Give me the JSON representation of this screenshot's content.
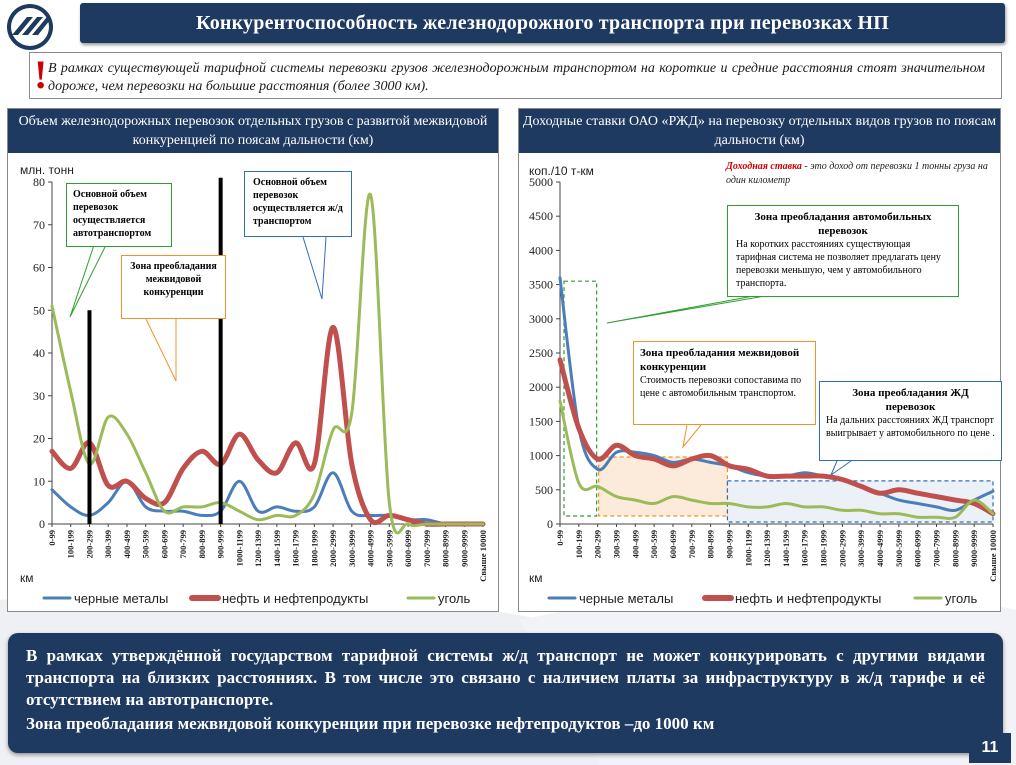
{
  "slide": {
    "title": "Конкурентоспособность железнодорожного транспорта при перевозках НП",
    "page_number": "11"
  },
  "intro": {
    "mark": "!",
    "text": "В рамках существующей тарифной системы перевозки грузов железнодорожным транспортом на короткие и средние расстояния стоят значительном дороже, чем перевозки на большие расстояния (более 3000 км)."
  },
  "left_panel": {
    "header": "Объем железнодорожных перевозок отдельных грузов с развитой межвидовой конкуренцией по поясам дальности (км)",
    "callouts": {
      "auto": "Основной объем перевозок осуществляется автотранспортом",
      "inter": "Зона преобладания межвидовой конкуренции",
      "rail": "Основной объем перевозок осуществляется ж/д транспортом"
    }
  },
  "right_panel": {
    "header": "Доходные ставки ОАО «РЖД» на перевозку отдельных видов грузов по поясам дальности (км)",
    "definition_highlight": "Доходная ставка",
    "definition_rest": " - это доход от перевозки 1 тонны груза на один километр",
    "callouts": {
      "auto_title": "Зона преобладания автомобильных перевозок",
      "auto_body": "На коротких расстояниях существующая тарифная система не позволяет предлагать цену перевозки меньшую, чем у автомобильного транспорта.",
      "inter_title": "Зона преобладания межвидовой конкуренции",
      "inter_body": "Стоимость перевозки сопоставима по цене с автомобильным транспортом.",
      "rail_title": "Зона преобладания ЖД перевозок",
      "rail_body": "На дальних расстояниях ЖД транспорт выигрывает у автомобильного по цене ."
    }
  },
  "bottom": {
    "para1": "В рамках утверждённой государством тарифной системы ж/д транспорт не может конкурировать с другими видами транспорта на близких расстояниях. В том числе это связано с наличием платы за инфраструктуру в ж/д тарифе и её отсутствием на автотранспорте.",
    "para2": "Зона преобладания межвидовой конкуренции при перевозке нефтепродуктов –до 1000 км"
  },
  "colors": {
    "navy": "#1e3a60",
    "series_black_metals": "#4a7ebb",
    "series_oil": "#c0504d",
    "series_coal": "#9bbb59",
    "zone_green": "#2e9e2e",
    "zone_orange": "#f0932b",
    "zone_blue": "#2f6fb7",
    "alert": "#d00000"
  },
  "chart_data": [
    {
      "type": "line",
      "ylabel": "млн. тонн",
      "xlabel": "км",
      "ylim": [
        0,
        80
      ],
      "yticks": [
        0,
        10,
        20,
        30,
        40,
        50,
        60,
        70,
        80
      ],
      "grid": false,
      "legend_position": "bottom",
      "categories": [
        "0-99",
        "100-199",
        "200-299",
        "300-399",
        "400-499",
        "500-599",
        "600-699",
        "700-799",
        "800-899",
        "900-999",
        "1000-1199",
        "1200-1399",
        "1400-1599",
        "1600-1799",
        "1800-1999",
        "2000-2999",
        "3000-3999",
        "4000-4999",
        "5000-5999",
        "6000-6999",
        "7000-7999",
        "8000-8999",
        "9000-9999",
        "Свыше 10000"
      ],
      "series": [
        {
          "name": "черные металы",
          "color": "#4a7ebb",
          "values": [
            8,
            4,
            2,
            5,
            10,
            4,
            3,
            3,
            2,
            3,
            10,
            3,
            4,
            3,
            4,
            12,
            3,
            2,
            2,
            1,
            1,
            0,
            0,
            0
          ]
        },
        {
          "name": "нефть и нефтепродукты",
          "color": "#c0504d",
          "values": [
            17,
            13,
            19,
            9,
            10,
            6,
            5,
            13,
            17,
            14,
            21,
            15,
            12,
            19,
            14,
            46,
            14,
            1,
            2,
            1,
            0,
            0,
            0,
            0
          ]
        },
        {
          "name": "уголь",
          "color": "#9bbb59",
          "values": [
            51,
            31,
            14,
            25,
            21,
            12,
            3,
            4,
            4,
            5,
            3,
            1,
            2,
            2,
            7,
            22,
            26,
            77,
            5,
            0,
            0,
            0,
            0,
            0
          ]
        }
      ]
    },
    {
      "type": "line",
      "ylabel": "коп./10 т-км",
      "xlabel": "км",
      "ylim": [
        0,
        5000
      ],
      "yticks": [
        0,
        500,
        1000,
        1500,
        2000,
        2500,
        3000,
        3500,
        4000,
        4500,
        5000
      ],
      "grid": false,
      "legend_position": "bottom",
      "categories": [
        "0-99",
        "100-199",
        "200-299",
        "300-399",
        "400-499",
        "500-599",
        "600-699",
        "700-799",
        "800-899",
        "900-999",
        "1000-1199",
        "1200-1399",
        "1400-1599",
        "1600-1799",
        "1800-1999",
        "2000-2999",
        "3000-3999",
        "4000-4999",
        "5000-5999",
        "6000-6999",
        "7000-7999",
        "8000-8999",
        "9000-9999",
        "Свыше 10000"
      ],
      "series": [
        {
          "name": "черные металы",
          "color": "#4a7ebb",
          "values": [
            3600,
            1400,
            800,
            1050,
            1050,
            1000,
            900,
            950,
            900,
            850,
            750,
            700,
            700,
            750,
            700,
            650,
            550,
            450,
            350,
            300,
            250,
            200,
            350,
            480
          ]
        },
        {
          "name": "нефть и нефтепродукты",
          "color": "#c0504d",
          "values": [
            2400,
            1400,
            950,
            1150,
            1000,
            950,
            850,
            950,
            1000,
            850,
            800,
            700,
            700,
            700,
            700,
            650,
            550,
            450,
            500,
            450,
            400,
            350,
            300,
            150
          ]
        },
        {
          "name": "уголь",
          "color": "#9bbb59",
          "values": [
            1800,
            600,
            550,
            400,
            350,
            300,
            400,
            350,
            300,
            300,
            250,
            250,
            300,
            250,
            250,
            200,
            200,
            150,
            150,
            100,
            100,
            100,
            350,
            150
          ]
        }
      ]
    }
  ]
}
